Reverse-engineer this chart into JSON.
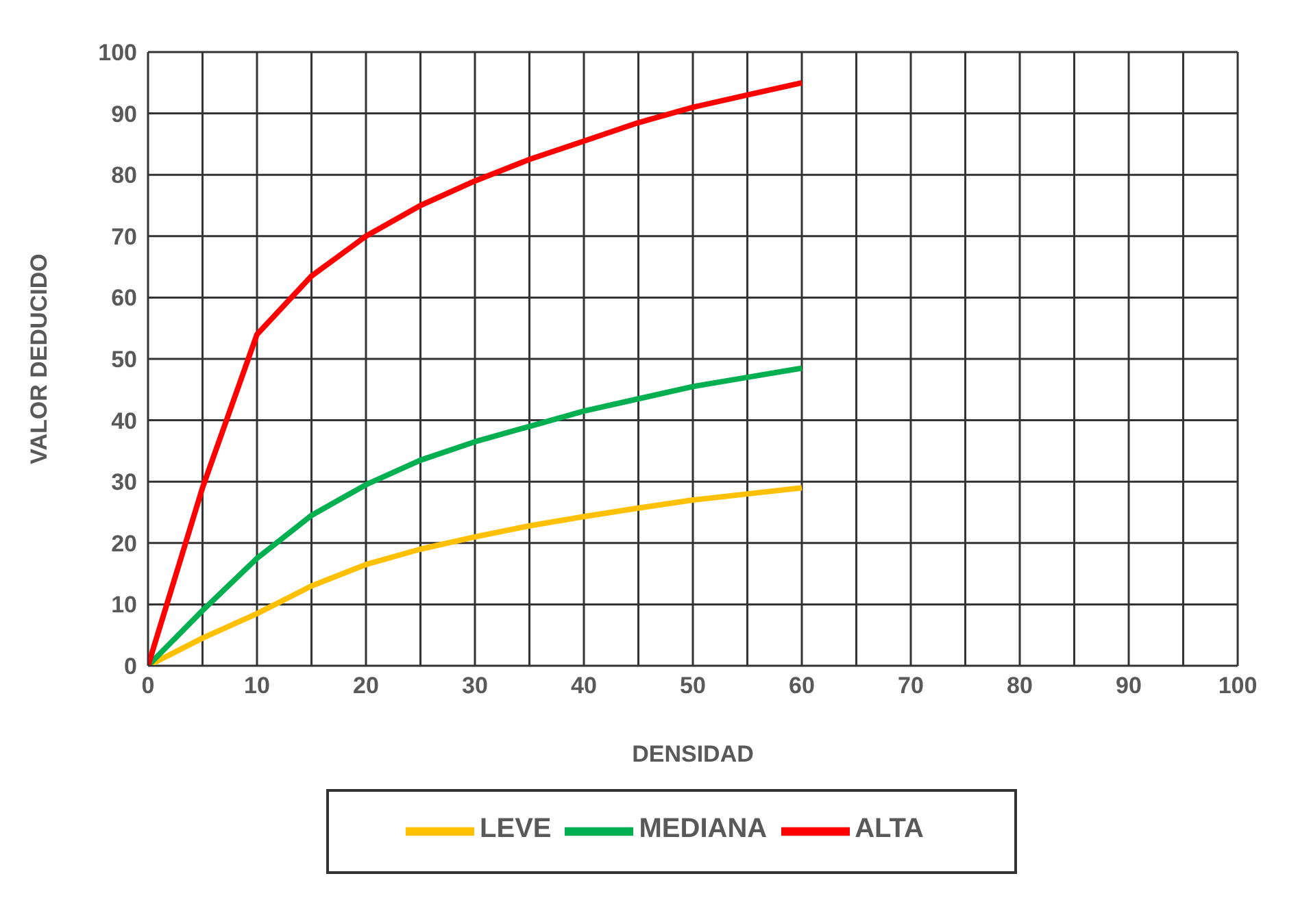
{
  "chart_data": {
    "type": "line",
    "xlabel": "DENSIDAD",
    "ylabel": "VALOR DEDUCIDO",
    "x": [
      0,
      5,
      10,
      15,
      20,
      25,
      30,
      35,
      40,
      45,
      50,
      55,
      60
    ],
    "series": [
      {
        "name": "LEVE",
        "color": "#ffc000",
        "values": [
          0,
          4.5,
          8.5,
          13,
          16.5,
          19,
          21,
          22.8,
          24.3,
          25.7,
          27,
          28,
          29
        ]
      },
      {
        "name": "MEDIANA",
        "color": "#00b050",
        "values": [
          0,
          9,
          17.5,
          24.5,
          29.5,
          33.5,
          36.5,
          39,
          41.5,
          43.5,
          45.5,
          47,
          48.5
        ]
      },
      {
        "name": "ALTA",
        "color": "#ff0000",
        "values": [
          0,
          29,
          54,
          63.5,
          70,
          75,
          79,
          82.5,
          85.5,
          88.5,
          91,
          93,
          95
        ]
      }
    ],
    "xlim": [
      0,
      100
    ],
    "xticks": [
      0,
      {
        "value": 5,
        "label": null
      },
      10,
      {
        "value": 15,
        "label": null
      },
      20,
      {
        "value": 25,
        "label": null
      },
      30,
      {
        "value": 35,
        "label": null
      },
      40,
      {
        "value": 45,
        "label": null
      },
      50,
      {
        "value": 55,
        "label": null
      },
      60,
      {
        "value": 65,
        "label": null
      },
      70,
      {
        "value": 75,
        "label": null
      },
      80,
      {
        "value": 85,
        "label": null
      },
      90,
      {
        "value": 95,
        "label": null
      },
      100
    ],
    "ylim": [
      0,
      100
    ],
    "yticks": [
      0,
      10,
      20,
      30,
      40,
      50,
      60,
      70,
      80,
      90,
      100
    ],
    "grid": true,
    "legend": "bottom",
    "marker": "none",
    "line_style": "solid"
  }
}
